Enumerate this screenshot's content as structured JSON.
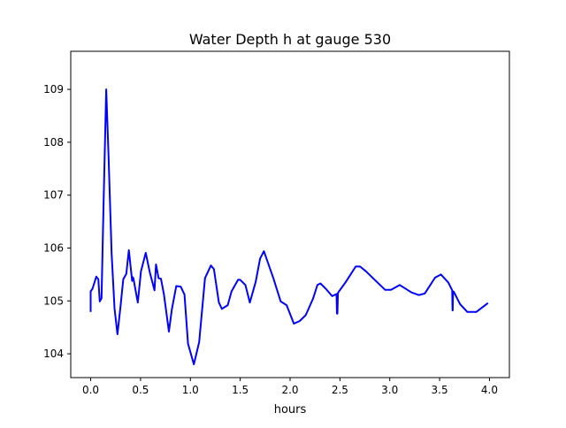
{
  "chart_data": {
    "type": "line",
    "title": "Water Depth h at gauge 530",
    "xlabel": "hours",
    "ylabel": "",
    "xlim": [
      -0.2,
      4.2
    ],
    "ylim": [
      103.55,
      109.72
    ],
    "xticks": [
      0.0,
      0.5,
      1.0,
      1.5,
      2.0,
      2.5,
      3.0,
      3.5,
      4.0
    ],
    "xtick_labels": [
      "0.0",
      "0.5",
      "1.0",
      "1.5",
      "2.0",
      "2.5",
      "3.0",
      "3.5",
      "4.0"
    ],
    "yticks": [
      104,
      105,
      106,
      107,
      108,
      109
    ],
    "ytick_labels": [
      "104",
      "105",
      "106",
      "107",
      "108",
      "109"
    ],
    "grid": false,
    "series": [
      {
        "name": "h",
        "color": "#0000ff",
        "x": [
          0,
          0,
          0.018,
          0.056,
          0.077,
          0.091,
          0.109,
          0.127,
          0.156,
          0.18,
          0.21,
          0.239,
          0.268,
          0.298,
          0.327,
          0.357,
          0.383,
          0.416,
          0.42,
          0.428,
          0.472,
          0.504,
          0.552,
          0.593,
          0.64,
          0.655,
          0.681,
          0.705,
          0.735,
          0.785,
          0.814,
          0.858,
          0.903,
          0.941,
          0.976,
          1.035,
          1.088,
          1.147,
          1.206,
          1.236,
          1.286,
          1.316,
          1.375,
          1.413,
          1.478,
          1.5,
          1.552,
          1.596,
          1.655,
          1.699,
          1.737,
          1.832,
          1.906,
          1.965,
          2.009,
          2.038,
          2.097,
          2.157,
          2.23,
          2.274,
          2.304,
          2.363,
          2.422,
          2.466,
          2.47,
          2.475,
          2.48,
          2.487,
          2.555,
          2.658,
          2.702,
          2.761,
          2.865,
          2.953,
          3.012,
          3.1,
          3.218,
          3.292,
          3.351,
          3.454,
          3.513,
          3.587,
          3.626,
          3.63,
          3.631,
          3.635,
          3.643,
          3.705,
          3.779,
          3.867,
          3.985
        ],
        "y": [
          104.79,
          105.18,
          105.23,
          105.46,
          105.41,
          104.99,
          105.05,
          106.68,
          109.0,
          107.71,
          105.9,
          104.86,
          104.37,
          104.87,
          105.41,
          105.51,
          105.96,
          105.38,
          105.45,
          105.43,
          104.97,
          105.56,
          105.91,
          105.54,
          105.2,
          105.69,
          105.43,
          105.42,
          105.12,
          104.42,
          104.84,
          105.28,
          105.27,
          105.12,
          104.19,
          103.8,
          104.22,
          105.43,
          105.67,
          105.6,
          104.97,
          104.85,
          104.92,
          105.18,
          105.4,
          105.4,
          105.3,
          104.97,
          105.36,
          105.8,
          105.94,
          105.43,
          104.99,
          104.92,
          104.71,
          104.57,
          104.62,
          104.73,
          105.04,
          105.3,
          105.33,
          105.22,
          105.09,
          105.13,
          104.76,
          104.76,
          105.15,
          105.17,
          105.35,
          105.65,
          105.65,
          105.56,
          105.37,
          105.21,
          105.21,
          105.3,
          105.16,
          105.11,
          105.14,
          105.44,
          105.5,
          105.35,
          105.2,
          104.82,
          104.82,
          105.18,
          105.17,
          104.94,
          104.79,
          104.79,
          104.96
        ]
      }
    ]
  }
}
